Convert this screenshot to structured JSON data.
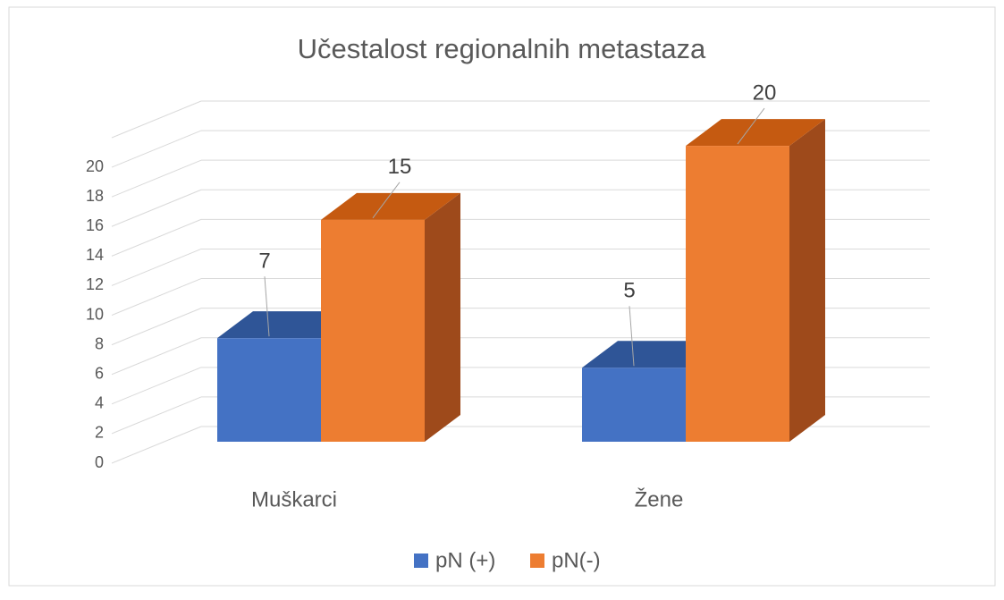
{
  "chart_data": {
    "type": "bar3d",
    "title": "Učestalost regionalnih metastaza",
    "categories": [
      "Muškarci",
      "Žene"
    ],
    "series": [
      {
        "name": "pN (+)",
        "color": "#4472c4",
        "values": [
          7,
          5
        ]
      },
      {
        "name": "pN(-)",
        "color": "#ed7d31",
        "values": [
          15,
          20
        ]
      }
    ],
    "ylim": [
      0,
      22
    ],
    "yticks": [
      0,
      2,
      4,
      6,
      8,
      10,
      12,
      14,
      16,
      18,
      20
    ],
    "grid": true,
    "legend": "bottom"
  }
}
